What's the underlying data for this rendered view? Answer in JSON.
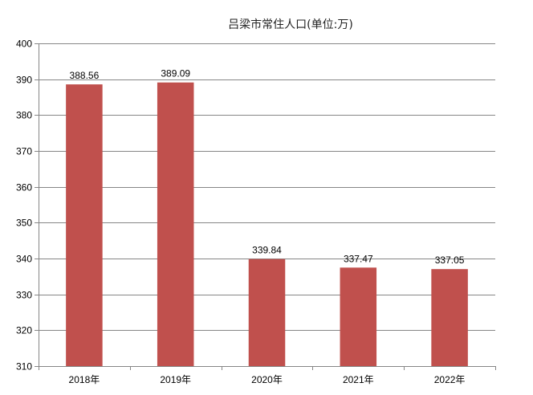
{
  "chart_data": {
    "type": "bar",
    "title": "吕梁市常住人口(单位:万)",
    "categories": [
      "2018年",
      "2019年",
      "2020年",
      "2021年",
      "2022年"
    ],
    "values": [
      388.56,
      389.09,
      339.84,
      337.47,
      337.05
    ],
    "data_labels": [
      "388.56",
      "389.09",
      "339.84",
      "337.47",
      "337.05"
    ],
    "xlabel": "",
    "ylabel": "",
    "ylim": [
      310,
      400
    ],
    "yticks": [
      310,
      320,
      330,
      340,
      350,
      360,
      370,
      380,
      390,
      400
    ],
    "grid": true,
    "legend": "none",
    "bar_color": "#C0504D",
    "grid_color": "#868686"
  }
}
